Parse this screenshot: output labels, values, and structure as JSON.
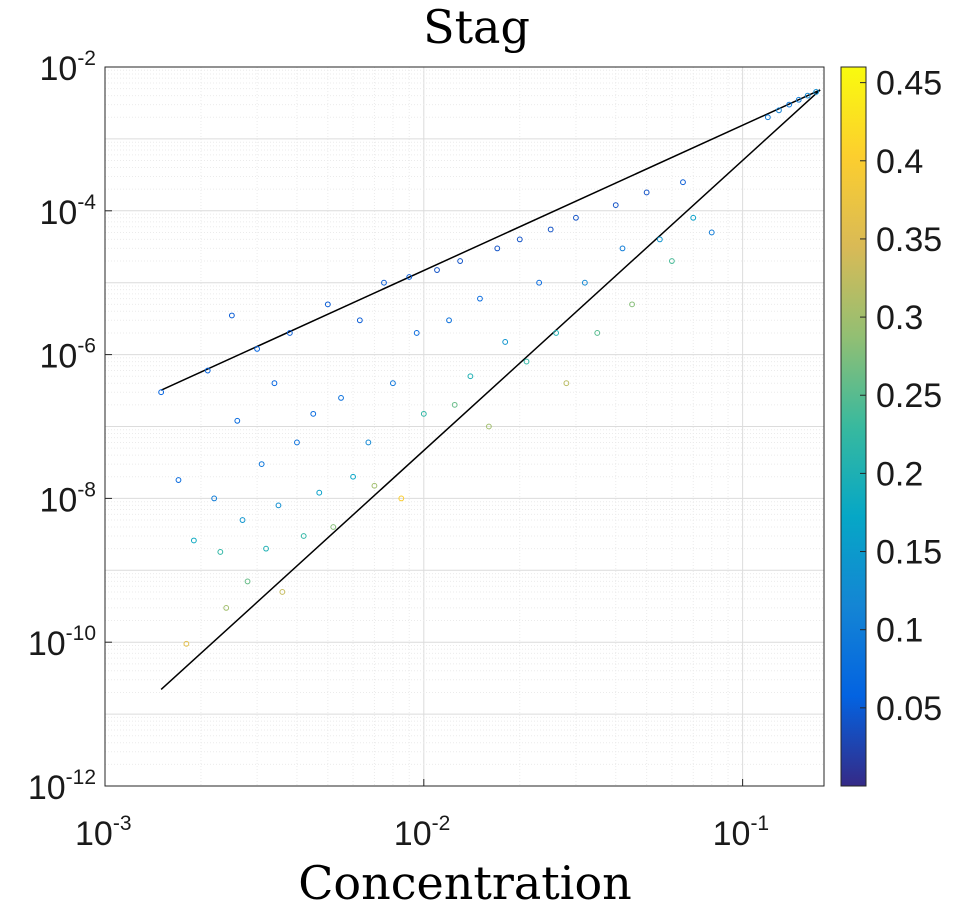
{
  "chart_data": {
    "type": "scatter",
    "title": "Stag",
    "xlabel": "Concentration",
    "ylabel": "",
    "xscale": "log",
    "yscale": "log",
    "xlim": [
      0.001,
      0.18
    ],
    "ylim": [
      1e-12,
      0.01
    ],
    "grid": true,
    "x_ticks": [
      {
        "base": "10",
        "exp": "-3",
        "value": 0.001
      },
      {
        "base": "10",
        "exp": "-2",
        "value": 0.01
      },
      {
        "base": "10",
        "exp": "-1",
        "value": 0.1
      }
    ],
    "y_ticks": [
      {
        "base": "10",
        "exp": "-2",
        "value": 0.01
      },
      {
        "base": "10",
        "exp": "-4",
        "value": 0.0001
      },
      {
        "base": "10",
        "exp": "-6",
        "value": 1e-06
      },
      {
        "base": "10",
        "exp": "-8",
        "value": 1e-08
      },
      {
        "base": "10",
        "exp": "-10",
        "value": 1e-10
      },
      {
        "base": "10",
        "exp": "-12",
        "value": 1e-12
      }
    ],
    "colorbar": {
      "colormap": "parula",
      "range": [
        0.0,
        0.46
      ],
      "tick_labels": [
        "0.05",
        "0.1",
        "0.15",
        "0.2",
        "0.25",
        "0.3",
        "0.35",
        "0.4",
        "0.45"
      ],
      "tick_values": [
        0.05,
        0.1,
        0.15,
        0.2,
        0.25,
        0.3,
        0.35,
        0.4,
        0.45
      ]
    },
    "bound_lines": [
      {
        "x": [
          0.0015,
          0.175
        ],
        "y": [
          3.2e-07,
          0.0048
        ]
      },
      {
        "x": [
          0.0015,
          0.175
        ],
        "y": [
          2.2e-11,
          0.0048
        ]
      }
    ],
    "series": [
      {
        "marker": "open-circle",
        "points": [
          [
            0.0015,
            3e-07,
            0.06
          ],
          [
            0.0017,
            1.8e-08,
            0.07
          ],
          [
            0.0018,
            9.5e-11,
            0.36
          ],
          [
            0.0019,
            2.6e-09,
            0.18
          ],
          [
            0.0021,
            6e-07,
            0.06
          ],
          [
            0.0022,
            1e-08,
            0.1
          ],
          [
            0.0023,
            1.8e-09,
            0.22
          ],
          [
            0.0024,
            3e-10,
            0.3
          ],
          [
            0.0025,
            3.5e-06,
            0.05
          ],
          [
            0.0026,
            1.2e-07,
            0.07
          ],
          [
            0.0027,
            5e-09,
            0.14
          ],
          [
            0.0028,
            7e-10,
            0.26
          ],
          [
            0.003,
            1.2e-06,
            0.06
          ],
          [
            0.0031,
            3e-08,
            0.09
          ],
          [
            0.0032,
            2e-09,
            0.2
          ],
          [
            0.0034,
            4e-07,
            0.06
          ],
          [
            0.0035,
            8e-09,
            0.13
          ],
          [
            0.0036,
            5e-10,
            0.33
          ],
          [
            0.0038,
            2e-06,
            0.05
          ],
          [
            0.004,
            6e-08,
            0.08
          ],
          [
            0.0042,
            3e-09,
            0.22
          ],
          [
            0.0045,
            1.5e-07,
            0.07
          ],
          [
            0.0047,
            1.2e-08,
            0.16
          ],
          [
            0.005,
            5e-06,
            0.05
          ],
          [
            0.0052,
            4e-09,
            0.28
          ],
          [
            0.0055,
            2.5e-07,
            0.08
          ],
          [
            0.006,
            2e-08,
            0.17
          ],
          [
            0.0063,
            3e-06,
            0.05
          ],
          [
            0.0067,
            6e-08,
            0.12
          ],
          [
            0.007,
            1.5e-08,
            0.3
          ],
          [
            0.0075,
            1e-05,
            0.05
          ],
          [
            0.008,
            4e-07,
            0.09
          ],
          [
            0.0085,
            1e-08,
            0.4
          ],
          [
            0.009,
            1.2e-05,
            0.05
          ],
          [
            0.0095,
            2e-06,
            0.07
          ],
          [
            0.01,
            1.5e-07,
            0.22
          ],
          [
            0.011,
            1.5e-05,
            0.04
          ],
          [
            0.012,
            3e-06,
            0.08
          ],
          [
            0.0125,
            2e-07,
            0.26
          ],
          [
            0.013,
            2e-05,
            0.04
          ],
          [
            0.014,
            5e-07,
            0.2
          ],
          [
            0.015,
            6e-06,
            0.07
          ],
          [
            0.016,
            1e-07,
            0.3
          ],
          [
            0.017,
            3e-05,
            0.04
          ],
          [
            0.018,
            1.5e-06,
            0.14
          ],
          [
            0.02,
            4e-05,
            0.04
          ],
          [
            0.021,
            8e-07,
            0.22
          ],
          [
            0.023,
            1e-05,
            0.07
          ],
          [
            0.025,
            5.5e-05,
            0.04
          ],
          [
            0.026,
            2e-06,
            0.2
          ],
          [
            0.028,
            4e-07,
            0.32
          ],
          [
            0.03,
            8e-05,
            0.04
          ],
          [
            0.032,
            1e-05,
            0.12
          ],
          [
            0.035,
            2e-06,
            0.25
          ],
          [
            0.04,
            0.00012,
            0.04
          ],
          [
            0.042,
            3e-05,
            0.1
          ],
          [
            0.045,
            5e-06,
            0.28
          ],
          [
            0.05,
            0.00018,
            0.04
          ],
          [
            0.055,
            4e-05,
            0.14
          ],
          [
            0.06,
            2e-05,
            0.24
          ],
          [
            0.065,
            0.00025,
            0.05
          ],
          [
            0.07,
            8e-05,
            0.16
          ],
          [
            0.08,
            5e-05,
            0.1
          ],
          [
            0.12,
            0.002,
            0.1
          ],
          [
            0.13,
            0.0025,
            0.11
          ],
          [
            0.14,
            0.003,
            0.09
          ],
          [
            0.15,
            0.0035,
            0.1
          ],
          [
            0.16,
            0.004,
            0.12
          ],
          [
            0.17,
            0.0045,
            0.13
          ]
        ]
      }
    ]
  }
}
